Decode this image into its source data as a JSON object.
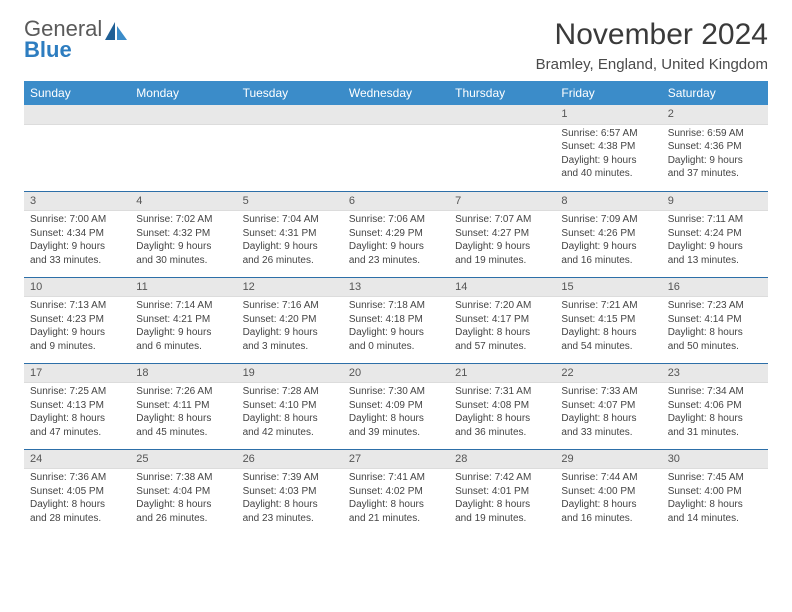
{
  "logo": {
    "word1": "General",
    "word2": "Blue"
  },
  "title": "November 2024",
  "location": "Bramley, England, United Kingdom",
  "dayHeaders": [
    "Sunday",
    "Monday",
    "Tuesday",
    "Wednesday",
    "Thursday",
    "Friday",
    "Saturday"
  ],
  "colors": {
    "headerBg": "#3b8cc9",
    "headerText": "#ffffff",
    "dayBarBg": "#e8e8e8",
    "rowBorder": "#2d6fa8",
    "logoBlue": "#2d7dc0",
    "textGray": "#5a5a5a"
  },
  "weeks": [
    [
      null,
      null,
      null,
      null,
      null,
      {
        "n": "1",
        "sunrise": "6:57 AM",
        "sunset": "4:38 PM",
        "daylight": "9 hours and 40 minutes."
      },
      {
        "n": "2",
        "sunrise": "6:59 AM",
        "sunset": "4:36 PM",
        "daylight": "9 hours and 37 minutes."
      }
    ],
    [
      {
        "n": "3",
        "sunrise": "7:00 AM",
        "sunset": "4:34 PM",
        "daylight": "9 hours and 33 minutes."
      },
      {
        "n": "4",
        "sunrise": "7:02 AM",
        "sunset": "4:32 PM",
        "daylight": "9 hours and 30 minutes."
      },
      {
        "n": "5",
        "sunrise": "7:04 AM",
        "sunset": "4:31 PM",
        "daylight": "9 hours and 26 minutes."
      },
      {
        "n": "6",
        "sunrise": "7:06 AM",
        "sunset": "4:29 PM",
        "daylight": "9 hours and 23 minutes."
      },
      {
        "n": "7",
        "sunrise": "7:07 AM",
        "sunset": "4:27 PM",
        "daylight": "9 hours and 19 minutes."
      },
      {
        "n": "8",
        "sunrise": "7:09 AM",
        "sunset": "4:26 PM",
        "daylight": "9 hours and 16 minutes."
      },
      {
        "n": "9",
        "sunrise": "7:11 AM",
        "sunset": "4:24 PM",
        "daylight": "9 hours and 13 minutes."
      }
    ],
    [
      {
        "n": "10",
        "sunrise": "7:13 AM",
        "sunset": "4:23 PM",
        "daylight": "9 hours and 9 minutes."
      },
      {
        "n": "11",
        "sunrise": "7:14 AM",
        "sunset": "4:21 PM",
        "daylight": "9 hours and 6 minutes."
      },
      {
        "n": "12",
        "sunrise": "7:16 AM",
        "sunset": "4:20 PM",
        "daylight": "9 hours and 3 minutes."
      },
      {
        "n": "13",
        "sunrise": "7:18 AM",
        "sunset": "4:18 PM",
        "daylight": "9 hours and 0 minutes."
      },
      {
        "n": "14",
        "sunrise": "7:20 AM",
        "sunset": "4:17 PM",
        "daylight": "8 hours and 57 minutes."
      },
      {
        "n": "15",
        "sunrise": "7:21 AM",
        "sunset": "4:15 PM",
        "daylight": "8 hours and 54 minutes."
      },
      {
        "n": "16",
        "sunrise": "7:23 AM",
        "sunset": "4:14 PM",
        "daylight": "8 hours and 50 minutes."
      }
    ],
    [
      {
        "n": "17",
        "sunrise": "7:25 AM",
        "sunset": "4:13 PM",
        "daylight": "8 hours and 47 minutes."
      },
      {
        "n": "18",
        "sunrise": "7:26 AM",
        "sunset": "4:11 PM",
        "daylight": "8 hours and 45 minutes."
      },
      {
        "n": "19",
        "sunrise": "7:28 AM",
        "sunset": "4:10 PM",
        "daylight": "8 hours and 42 minutes."
      },
      {
        "n": "20",
        "sunrise": "7:30 AM",
        "sunset": "4:09 PM",
        "daylight": "8 hours and 39 minutes."
      },
      {
        "n": "21",
        "sunrise": "7:31 AM",
        "sunset": "4:08 PM",
        "daylight": "8 hours and 36 minutes."
      },
      {
        "n": "22",
        "sunrise": "7:33 AM",
        "sunset": "4:07 PM",
        "daylight": "8 hours and 33 minutes."
      },
      {
        "n": "23",
        "sunrise": "7:34 AM",
        "sunset": "4:06 PM",
        "daylight": "8 hours and 31 minutes."
      }
    ],
    [
      {
        "n": "24",
        "sunrise": "7:36 AM",
        "sunset": "4:05 PM",
        "daylight": "8 hours and 28 minutes."
      },
      {
        "n": "25",
        "sunrise": "7:38 AM",
        "sunset": "4:04 PM",
        "daylight": "8 hours and 26 minutes."
      },
      {
        "n": "26",
        "sunrise": "7:39 AM",
        "sunset": "4:03 PM",
        "daylight": "8 hours and 23 minutes."
      },
      {
        "n": "27",
        "sunrise": "7:41 AM",
        "sunset": "4:02 PM",
        "daylight": "8 hours and 21 minutes."
      },
      {
        "n": "28",
        "sunrise": "7:42 AM",
        "sunset": "4:01 PM",
        "daylight": "8 hours and 19 minutes."
      },
      {
        "n": "29",
        "sunrise": "7:44 AM",
        "sunset": "4:00 PM",
        "daylight": "8 hours and 16 minutes."
      },
      {
        "n": "30",
        "sunrise": "7:45 AM",
        "sunset": "4:00 PM",
        "daylight": "8 hours and 14 minutes."
      }
    ]
  ],
  "labels": {
    "sunrise": "Sunrise:",
    "sunset": "Sunset:",
    "daylight": "Daylight:"
  }
}
